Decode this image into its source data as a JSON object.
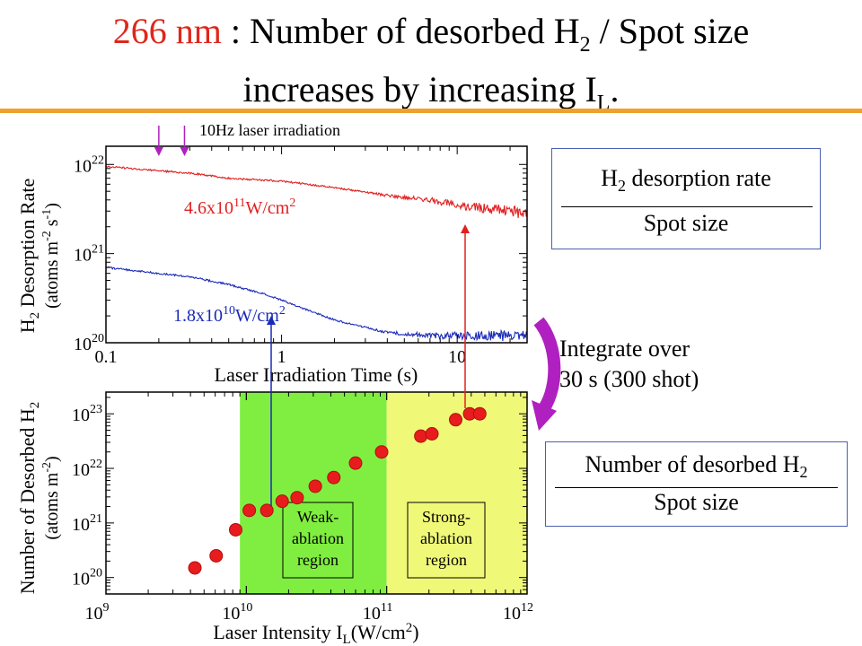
{
  "title": {
    "highlight": "266 nm",
    "line1_rest": " : Number of desorbed H",
    "sub2": "2",
    "line1_tail": " / Spot size",
    "line2": "increases by increasing I",
    "sub_L": "L",
    "period": "."
  },
  "laser_label": "10Hz laser irradiation",
  "box_rate": {
    "numerator": "H",
    "numerator_sub": "2",
    "numerator_rest": " desorption rate",
    "denominator": "Spot size"
  },
  "integrate_text": {
    "line1": "Integrate over",
    "line2": "30 s (300 shot)"
  },
  "box_number": {
    "numerator": "Number of desorbed H",
    "numerator_sub": "2",
    "denominator": "Spot size"
  },
  "colors": {
    "title_red": "#e0261c",
    "rule_orange": "#f0a030",
    "series_red": "#e02020",
    "series_blue": "#1a2ab8",
    "weak_region": "#80ee40",
    "strong_region": "#f0f878",
    "arrow_magenta": "#b020c0",
    "box_border": "#4a5fb0"
  },
  "chart_data": [
    {
      "type": "line",
      "xlabel": "Laser Irradiation Time (s)",
      "ylabel_line1": "H",
      "ylabel_sub": "2",
      "ylabel_line1_rest": " Desorption Rate",
      "ylabel_line2": "(atoms m",
      "ylabel_line2_sup": "-2",
      "ylabel_line2_mid": " s",
      "ylabel_line2_sup2": "-1",
      "ylabel_line2_end": ")",
      "x_log": true,
      "y_log": true,
      "xlim": [
        0.1,
        25
      ],
      "ylim": [
        1e+20,
        1.6e+22
      ],
      "x_ticks": [
        "0.1",
        "1",
        "10"
      ],
      "y_tick_base": "10",
      "y_ticks_exp": [
        "20",
        "21",
        "22"
      ],
      "series": [
        {
          "name": "4.6x10",
          "name_exp": "11",
          "name_unit": "W/cm",
          "name_unit_exp": "2",
          "color": "#e02020",
          "x": [
            0.1,
            0.2,
            0.3,
            0.5,
            1,
            2,
            4,
            7,
            10,
            20,
            25
          ],
          "y": [
            9.5e+21,
            8.5e+21,
            8e+21,
            7e+21,
            6.5e+21,
            5.5e+21,
            4.5e+21,
            4e+21,
            3.5e+21,
            3e+21,
            2.8e+21
          ]
        },
        {
          "name": "1.8x10",
          "name_exp": "10",
          "name_unit": "W/cm",
          "name_unit_exp": "2",
          "color": "#1a2ab8",
          "x": [
            0.1,
            0.2,
            0.3,
            0.5,
            0.8,
            1,
            2,
            4,
            7,
            10,
            20,
            25
          ],
          "y": [
            7e+20,
            6e+20,
            5.5e+20,
            4.5e+20,
            3.5e+20,
            3e+20,
            1.8e+20,
            1.3e+20,
            1.2e+20,
            1.2e+20,
            1.2e+20,
            1.2e+20
          ]
        }
      ],
      "annotation": "10Hz laser irradiation",
      "arrows_at_x": [
        0.2,
        0.28
      ]
    },
    {
      "type": "scatter",
      "xlabel": "Laser Intensity I",
      "xlabel_sub": "L",
      "xlabel_rest": "(W/cm",
      "xlabel_sup": "2",
      "xlabel_end": ")",
      "ylabel_line1": "Number of Desorbed H",
      "ylabel_sub": "2",
      "ylabel_line2": "(atoms m",
      "ylabel_line2_sup": "-2",
      "ylabel_line2_end": ")",
      "x_log": true,
      "y_log": true,
      "xlim": [
        1000000000.0,
        1000000000000.0
      ],
      "ylim": [
        5e+19,
        2.5e+23
      ],
      "x_tick_base": "10",
      "x_ticks_exp": [
        "9",
        "10",
        "11",
        "12"
      ],
      "y_tick_base": "10",
      "y_ticks_exp": [
        "20",
        "21",
        "22",
        "23"
      ],
      "regions": [
        {
          "label_lines": [
            "Weak-",
            "ablation",
            "region"
          ],
          "x_range": [
            9000000000.0,
            100000000000.0
          ],
          "color": "#80ee40"
        },
        {
          "label_lines": [
            "Strong-",
            "ablation",
            "region"
          ],
          "x_range": [
            100000000000.0,
            1000000000000.0
          ],
          "color": "#f0f878"
        }
      ],
      "color": "#e81c1c",
      "x": [
        4300000000.0,
        6100000000.0,
        8400000000.0,
        10500000000.0,
        14000000000.0,
        18000000000.0,
        23000000000.0,
        31000000000.0,
        42000000000.0,
        60000000000.0,
        92000000000.0,
        175000000000.0,
        210000000000.0,
        310000000000.0,
        390000000000.0,
        460000000000.0
      ],
      "y": [
        1.5e+20,
        2.5e+20,
        7.5e+20,
        1.7e+21,
        1.7e+21,
        2.5e+21,
        2.9e+21,
        4.7e+21,
        6.8e+21,
        1.25e+22,
        2e+22,
        3.9e+22,
        4.3e+22,
        7.8e+22,
        1e+23,
        1e+23
      ]
    }
  ]
}
